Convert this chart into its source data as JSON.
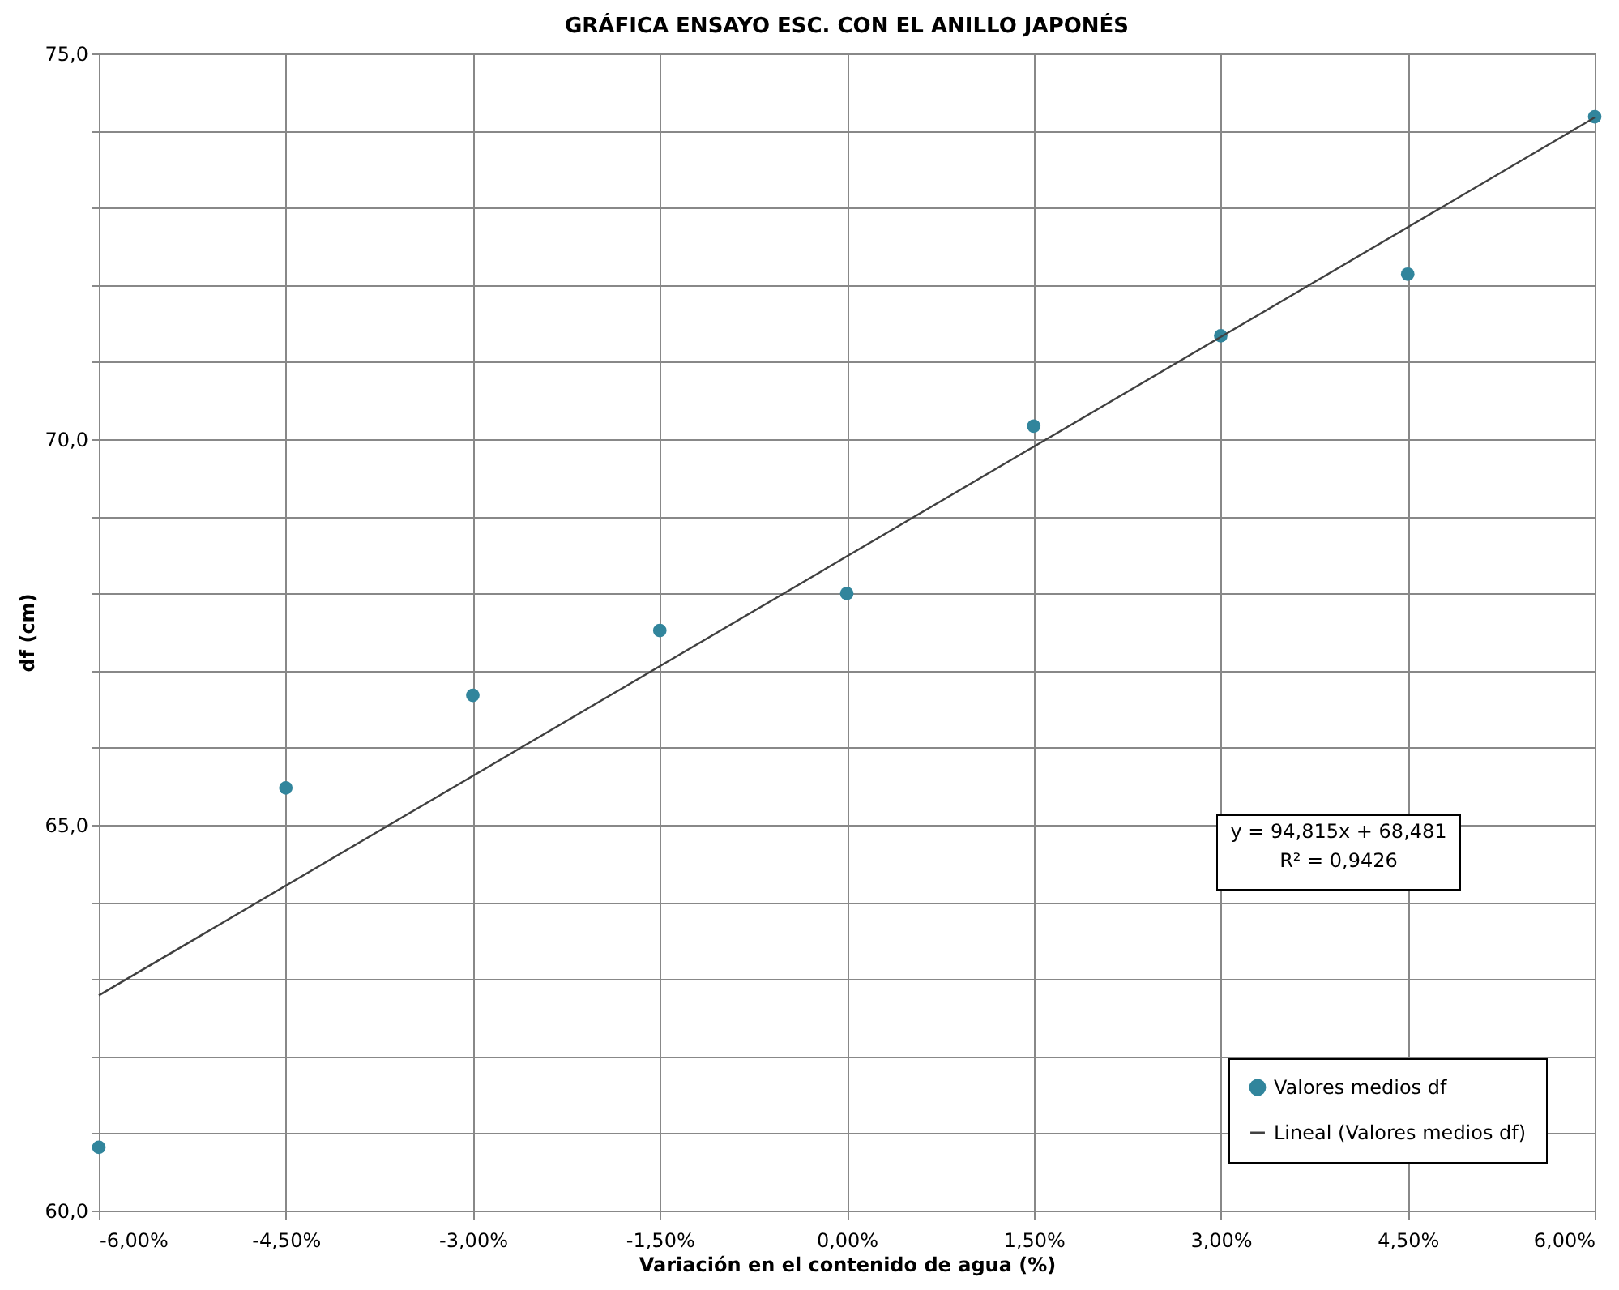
{
  "chart_data": {
    "type": "scatter",
    "title": "GRÁFICA ENSAYO ESC. CON EL ANILLO JAPONÉS",
    "xlabel": "Variación  en el contenido de agua  (%)",
    "ylabel": "df (cm)",
    "x": [
      -0.06,
      -0.045,
      -0.03,
      -0.015,
      0.0,
      0.015,
      0.03,
      0.045,
      0.06
    ],
    "series": [
      {
        "name": "Valores medios df",
        "marker": "circle",
        "color": "#31859c",
        "values": [
          60.82,
          65.48,
          66.68,
          67.52,
          68.0,
          70.17,
          71.34,
          72.14,
          74.18
        ]
      },
      {
        "name": "Lineal (Valores medios df)",
        "type": "line",
        "color": "#404040",
        "x": [
          -0.06,
          0.06
        ],
        "values": [
          62.79,
          74.17
        ]
      }
    ],
    "xlim": [
      -0.06,
      0.06
    ],
    "xticks": [
      {
        "value": -0.06,
        "label": "-6,00%"
      },
      {
        "value": -0.045,
        "label": "-4,50%"
      },
      {
        "value": -0.03,
        "label": "-3,00%"
      },
      {
        "value": -0.015,
        "label": "-1,50%"
      },
      {
        "value": 0.0,
        "label": "0,00%"
      },
      {
        "value": 0.015,
        "label": "1,50%"
      },
      {
        "value": 0.03,
        "label": "3,00%"
      },
      {
        "value": 0.045,
        "label": "4,50%"
      },
      {
        "value": 0.06,
        "label": "6,00%"
      }
    ],
    "ylim": [
      60,
      75
    ],
    "yticks": [
      {
        "value": 60,
        "label": "60,0"
      },
      {
        "value": 61,
        "label": null
      },
      {
        "value": 62,
        "label": null
      },
      {
        "value": 63,
        "label": null
      },
      {
        "value": 64,
        "label": null
      },
      {
        "value": 65,
        "label": "65,0"
      },
      {
        "value": 66,
        "label": null
      },
      {
        "value": 67,
        "label": null
      },
      {
        "value": 68,
        "label": null
      },
      {
        "value": 69,
        "label": null
      },
      {
        "value": 70,
        "label": "70,0"
      },
      {
        "value": 71,
        "label": null
      },
      {
        "value": 72,
        "label": null
      },
      {
        "value": 73,
        "label": null
      },
      {
        "value": 74,
        "label": null
      },
      {
        "value": 75,
        "label": "75,0"
      }
    ],
    "annotations": [
      "y = 94,815x + 68,481",
      "R² = 0,9426"
    ],
    "grid": true,
    "legend": "bottom right"
  }
}
